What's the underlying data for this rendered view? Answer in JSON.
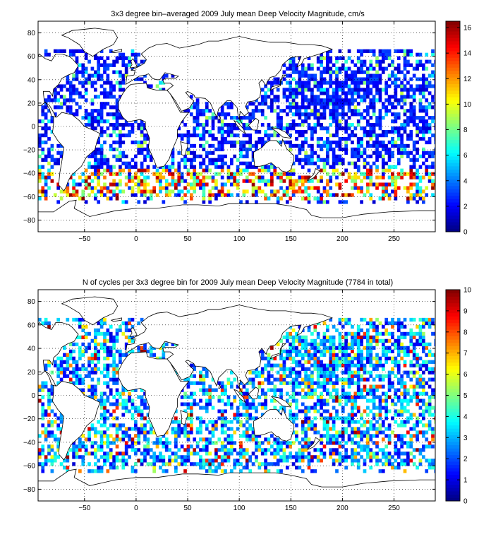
{
  "chart_data": [
    {
      "type": "heatmap",
      "title": "3x3 degree bin–averaged 2009 July mean Deep Velocity Magnitude, cm/s",
      "xlabel": "",
      "ylabel": "",
      "xlim": [
        -95,
        290
      ],
      "ylim": [
        -90,
        90
      ],
      "xticks": [
        -50,
        0,
        50,
        100,
        150,
        200,
        250
      ],
      "yticks": [
        80,
        60,
        40,
        20,
        0,
        -20,
        -40,
        -60,
        -80
      ],
      "grid": true,
      "colorbar": {
        "min": 0,
        "max": 16.5,
        "ticks": [
          0,
          2,
          4,
          6,
          8,
          10,
          12,
          14,
          16
        ]
      },
      "bin_size_deg": 3,
      "seed": 11,
      "field": "velocity"
    },
    {
      "type": "heatmap",
      "title": "N of cycles per 3x3 degree bin for 2009 July mean Deep Velocity Magnitude (7784 in total)",
      "xlabel": "",
      "ylabel": "",
      "xlim": [
        -95,
        290
      ],
      "ylim": [
        -90,
        90
      ],
      "xticks": [
        -50,
        0,
        50,
        100,
        150,
        200,
        250
      ],
      "yticks": [
        80,
        60,
        40,
        20,
        0,
        -20,
        -40,
        -60,
        -80
      ],
      "grid": true,
      "colorbar": {
        "min": 0,
        "max": 10,
        "ticks": [
          0,
          1,
          2,
          3,
          4,
          5,
          6,
          7,
          8,
          9,
          10
        ]
      },
      "bin_size_deg": 3,
      "seed": 57,
      "field": "count"
    }
  ]
}
